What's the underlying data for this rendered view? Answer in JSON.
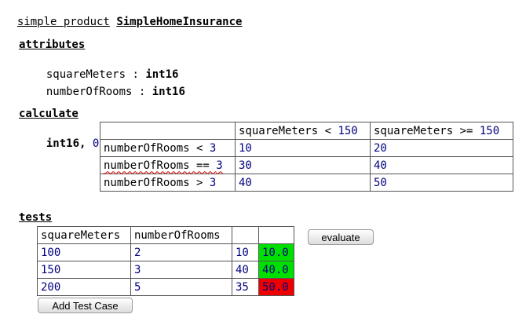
{
  "header": {
    "keyword": "simple product",
    "product_name": "SimpleHomeInsurance"
  },
  "attributes": {
    "section_label": "attributes",
    "items": [
      {
        "name": "squareMeters",
        "sep": " : ",
        "type": "int16"
      },
      {
        "name": "numberOfRooms",
        "sep": " : ",
        "type": "int16"
      }
    ]
  },
  "calculate": {
    "section_label": "calculate",
    "return_type": "int16",
    "sep": ", ",
    "default_value": "0",
    "column_headers": [
      {
        "var": "squareMeters",
        "op": " < ",
        "value": "150"
      },
      {
        "var": "squareMeters",
        "op": " >= ",
        "value": "150"
      }
    ],
    "rows": [
      {
        "var": "numberOfRooms",
        "op": " < ",
        "value": "3",
        "cells": [
          "10",
          "20"
        ]
      },
      {
        "var": "numberOfRooms",
        "op": " == ",
        "value": "3",
        "cells": [
          "30",
          "40"
        ]
      },
      {
        "var": "numberOfRooms",
        "op": " > ",
        "value": "3",
        "cells": [
          "40",
          "50"
        ]
      }
    ]
  },
  "tests": {
    "section_label": "tests",
    "headers": [
      "squareMeters",
      "numberOfRooms",
      "",
      ""
    ],
    "rows": [
      {
        "squareMeters": "100",
        "numberOfRooms": "2",
        "expected": "10",
        "actual": "10.0",
        "status": "pass"
      },
      {
        "squareMeters": "150",
        "numberOfRooms": "3",
        "expected": "40",
        "actual": "40.0",
        "status": "pass"
      },
      {
        "squareMeters": "200",
        "numberOfRooms": "5",
        "expected": "35",
        "actual": "50.0",
        "status": "fail"
      }
    ],
    "evaluate_label": "evaluate",
    "add_test_label": "Add Test Case"
  },
  "colors": {
    "pass": "#00e000",
    "fail": "#ee0000",
    "number": "#000080",
    "error_underline": "#d00000"
  }
}
